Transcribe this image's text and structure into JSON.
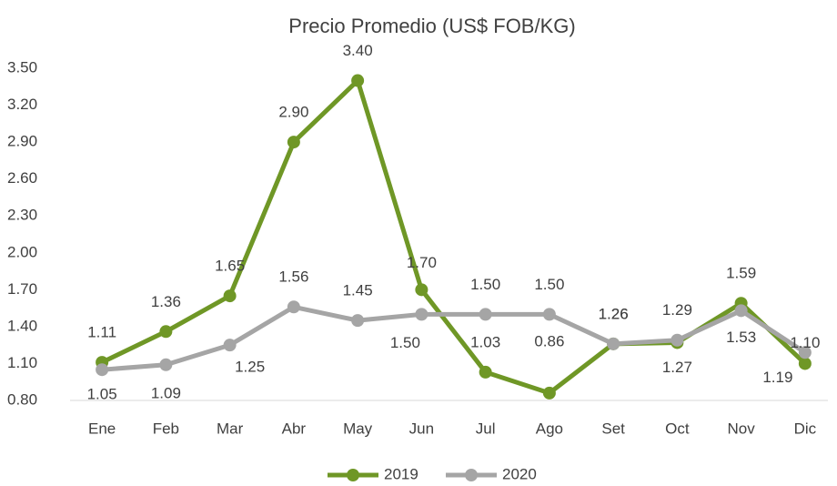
{
  "chart_data": {
    "type": "line",
    "title": "Precio Promedio (US$ FOB/KG)",
    "categories": [
      "Ene",
      "Feb",
      "Mar",
      "Abr",
      "May",
      "Jun",
      "Jul",
      "Ago",
      "Set",
      "Oct",
      "Nov",
      "Dic"
    ],
    "series": [
      {
        "name": "2019",
        "color": "#6f9726",
        "values": [
          1.11,
          1.36,
          1.65,
          2.9,
          3.4,
          1.7,
          1.03,
          0.86,
          1.26,
          1.27,
          1.59,
          1.1
        ],
        "value_labels": [
          "1.11",
          "1.36",
          "1.65",
          "2.90",
          "3.40",
          "1.70",
          "1.03",
          "0.86",
          "1.26",
          "1.27",
          "1.59",
          "1.10"
        ]
      },
      {
        "name": "2020",
        "color": "#a5a5a5",
        "values": [
          1.05,
          1.09,
          1.25,
          1.56,
          1.45,
          1.5,
          1.5,
          1.5,
          1.26,
          1.29,
          1.53,
          1.19
        ],
        "value_labels": [
          "1.05",
          "1.09",
          "1.25",
          "1.56",
          "1.45",
          "1.50",
          "1.50",
          "1.50",
          "1.26",
          "1.29",
          "1.53",
          "1.19"
        ]
      }
    ],
    "ylim": [
      0.8,
      3.5
    ],
    "yticks": [
      {
        "value": 0.8,
        "label": "0.80"
      },
      {
        "value": 1.1,
        "label": "1.10"
      },
      {
        "value": 1.4,
        "label": "1.40"
      },
      {
        "value": 1.7,
        "label": "1.70"
      },
      {
        "value": 2.0,
        "label": "2.00"
      },
      {
        "value": 2.3,
        "label": "2.30"
      },
      {
        "value": 2.6,
        "label": "2.60"
      },
      {
        "value": 2.9,
        "label": "2.90"
      },
      {
        "value": 3.2,
        "label": "3.20"
      },
      {
        "value": 3.5,
        "label": "3.50"
      }
    ],
    "grid": false,
    "legend": "bottom"
  }
}
